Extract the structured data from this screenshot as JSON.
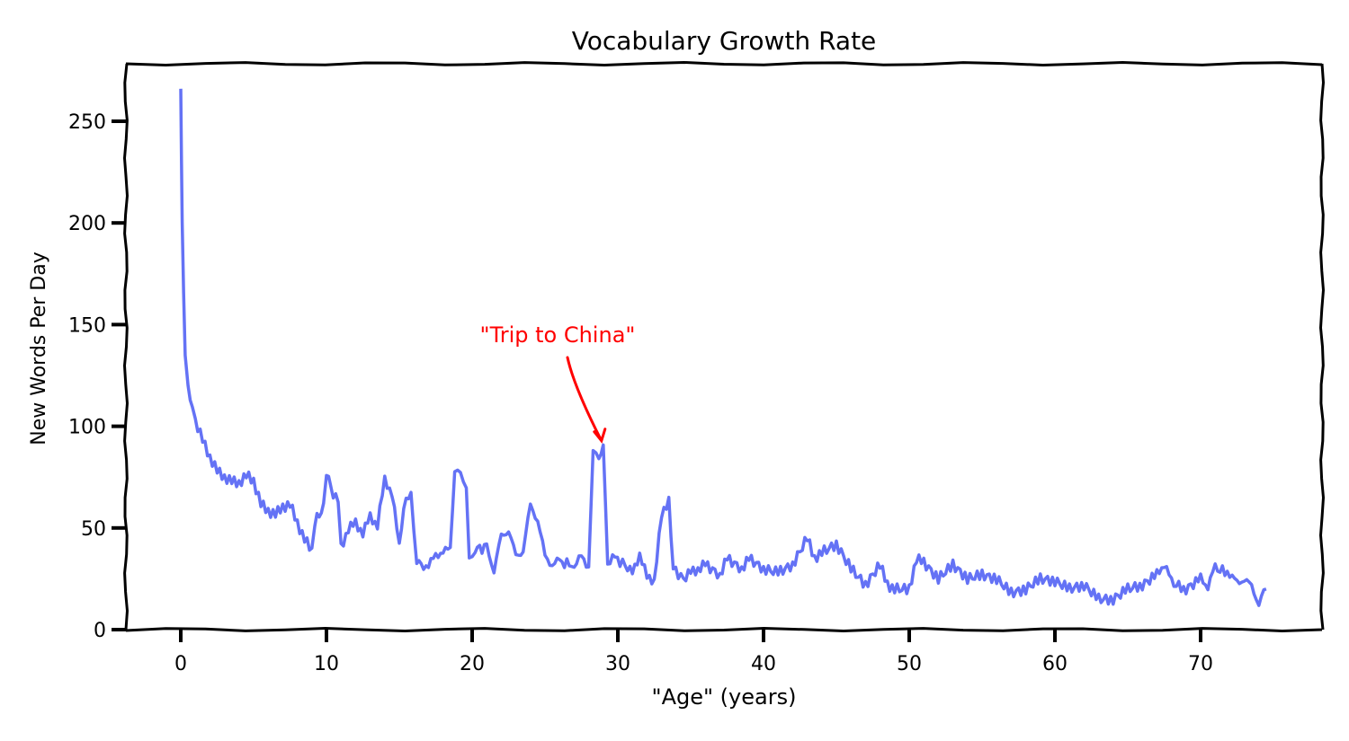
{
  "chart_data": {
    "type": "line",
    "style": "xkcd",
    "title": "Vocabulary Growth Rate",
    "xlabel": "\"Age\" (years)",
    "ylabel": "New Words Per Day",
    "xlim": [
      -4,
      79
    ],
    "ylim": [
      0,
      275
    ],
    "xticks": [
      0,
      10,
      20,
      30,
      40,
      50,
      60,
      70
    ],
    "yticks": [
      0,
      50,
      100,
      150,
      200,
      250
    ],
    "grid": false,
    "line_color": "#6472f5",
    "annotation": {
      "text": "\"Trip to China\"",
      "x": 29,
      "y": 92,
      "color": "#ff0000"
    },
    "points": [
      [
        0,
        266
      ],
      [
        0.05,
        230
      ],
      [
        0.1,
        200
      ],
      [
        0.2,
        165
      ],
      [
        0.3,
        135
      ],
      [
        0.5,
        120
      ],
      [
        0.8,
        110
      ],
      [
        1,
        103
      ],
      [
        1.5,
        93
      ],
      [
        2,
        85
      ],
      [
        2.5,
        78
      ],
      [
        3,
        75
      ],
      [
        3.5,
        73
      ],
      [
        4,
        72
      ],
      [
        4.5,
        76
      ],
      [
        5,
        73
      ],
      [
        5.5,
        62
      ],
      [
        6,
        58
      ],
      [
        6.5,
        57
      ],
      [
        7,
        60
      ],
      [
        7.5,
        62
      ],
      [
        8,
        52
      ],
      [
        8.5,
        45
      ],
      [
        9,
        38
      ],
      [
        9.2,
        53
      ],
      [
        9.8,
        60
      ],
      [
        10,
        78
      ],
      [
        10.3,
        68
      ],
      [
        10.8,
        65
      ],
      [
        11,
        40
      ],
      [
        11.5,
        50
      ],
      [
        12,
        52
      ],
      [
        12.5,
        48
      ],
      [
        13,
        55
      ],
      [
        13.5,
        52
      ],
      [
        14,
        73
      ],
      [
        14.5,
        68
      ],
      [
        15,
        40
      ],
      [
        15.3,
        62
      ],
      [
        15.8,
        65
      ],
      [
        16.2,
        35
      ],
      [
        16.5,
        30
      ],
      [
        17,
        33
      ],
      [
        17.5,
        35
      ],
      [
        18,
        40
      ],
      [
        18.5,
        38
      ],
      [
        18.8,
        80
      ],
      [
        19.2,
        75
      ],
      [
        19.6,
        72
      ],
      [
        19.8,
        33
      ],
      [
        20.2,
        40
      ],
      [
        21,
        40
      ],
      [
        21.5,
        30
      ],
      [
        22,
        45
      ],
      [
        22.5,
        50
      ],
      [
        23,
        35
      ],
      [
        23.5,
        40
      ],
      [
        24,
        60
      ],
      [
        24.5,
        55
      ],
      [
        25,
        35
      ],
      [
        25.5,
        33
      ],
      [
        26,
        33
      ],
      [
        27,
        32
      ],
      [
        27.5,
        35
      ],
      [
        28,
        32
      ],
      [
        28.3,
        87
      ],
      [
        28.7,
        85
      ],
      [
        29,
        90
      ],
      [
        29.3,
        33
      ],
      [
        29.8,
        35
      ],
      [
        30.5,
        32
      ],
      [
        31,
        27
      ],
      [
        31.5,
        38
      ],
      [
        32,
        25
      ],
      [
        32.5,
        25
      ],
      [
        33,
        55
      ],
      [
        33.5,
        65
      ],
      [
        33.8,
        30
      ],
      [
        34.5,
        25
      ],
      [
        35,
        28
      ],
      [
        35.5,
        30
      ],
      [
        36,
        32
      ],
      [
        37,
        27
      ],
      [
        37.5,
        35
      ],
      [
        38.5,
        30
      ],
      [
        39,
        35
      ],
      [
        40,
        30
      ],
      [
        41,
        28
      ],
      [
        42,
        32
      ],
      [
        43,
        45
      ],
      [
        43.5,
        35
      ],
      [
        44,
        38
      ],
      [
        45,
        42
      ],
      [
        46,
        30
      ],
      [
        47,
        22
      ],
      [
        48,
        32
      ],
      [
        48.5,
        22
      ],
      [
        49,
        20
      ],
      [
        50,
        20
      ],
      [
        50.5,
        35
      ],
      [
        51,
        33
      ],
      [
        52,
        25
      ],
      [
        53,
        32
      ],
      [
        54,
        25
      ],
      [
        55,
        27
      ],
      [
        56,
        25
      ],
      [
        57,
        18
      ],
      [
        58,
        20
      ],
      [
        59,
        25
      ],
      [
        60,
        24
      ],
      [
        61,
        20
      ],
      [
        62,
        22
      ],
      [
        63,
        15
      ],
      [
        64,
        15
      ],
      [
        65,
        20
      ],
      [
        66,
        22
      ],
      [
        67,
        27
      ],
      [
        67.5,
        33
      ],
      [
        68,
        23
      ],
      [
        69,
        20
      ],
      [
        70,
        25
      ],
      [
        70.5,
        22
      ],
      [
        71,
        30
      ],
      [
        72,
        28
      ],
      [
        72.5,
        22
      ],
      [
        73,
        26
      ],
      [
        73.5,
        20
      ],
      [
        74,
        14
      ],
      [
        74.5,
        20
      ]
    ]
  }
}
